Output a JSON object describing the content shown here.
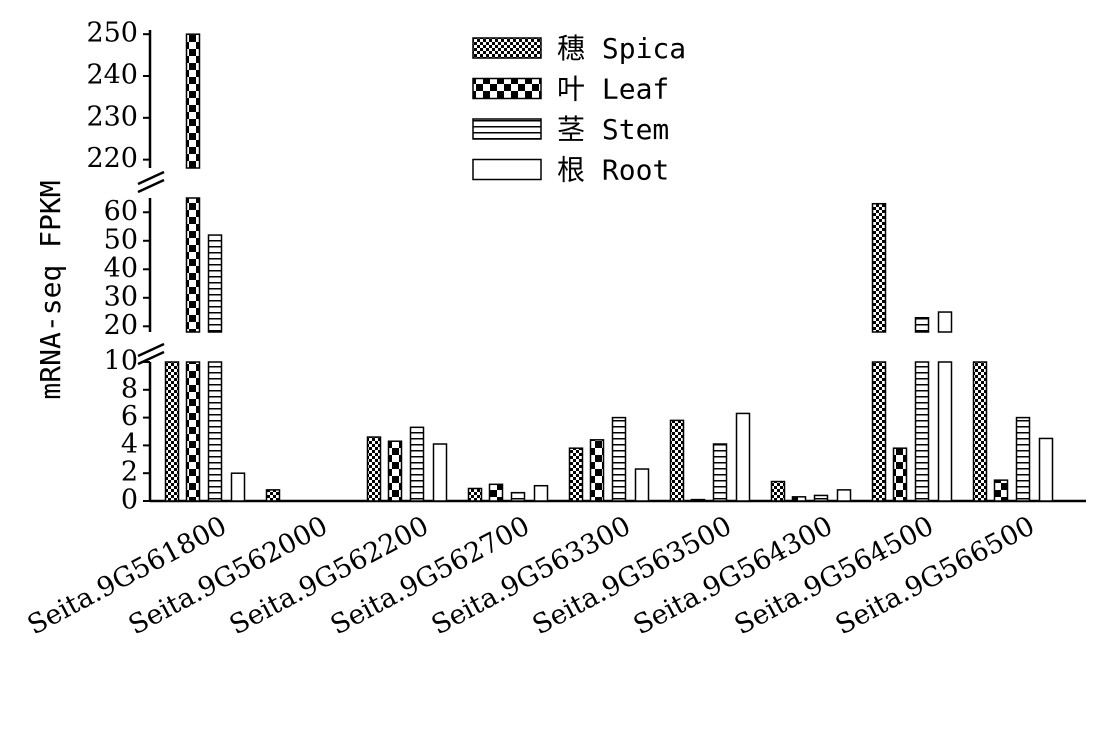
{
  "chart_data": {
    "type": "bar",
    "y_label": "mRNA-seq FPKM",
    "categories": [
      "Seita.9G561800",
      "Seita.9G562000",
      "Seita.9G562200",
      "Seita.9G562700",
      "Seita.9G563300",
      "Seita.9G563500",
      "Seita.9G564300",
      "Seita.9G564500",
      "Seita.9G566500"
    ],
    "series": [
      {
        "name": "穗 Spica",
        "pattern": "fine-check",
        "values": [
          15,
          0.8,
          4.6,
          0.9,
          3.8,
          5.8,
          1.4,
          63,
          15
        ]
      },
      {
        "name": "叶 Leaf",
        "pattern": "coarse-check",
        "values": [
          250,
          0,
          4.3,
          1.2,
          4.4,
          0.1,
          0.3,
          3.8,
          1.5
        ]
      },
      {
        "name": "茎 Stem",
        "pattern": "hlines",
        "values": [
          52,
          0,
          5.3,
          0.6,
          6.0,
          4.1,
          0.4,
          23,
          6.0
        ]
      },
      {
        "name": "根 Root",
        "pattern": "none",
        "values": [
          2,
          0,
          4.1,
          1.1,
          2.3,
          6.3,
          0.8,
          25,
          4.5
        ]
      }
    ],
    "y_segments": [
      {
        "ylim": [
          0,
          10
        ],
        "yticks": [
          0,
          2,
          4,
          6,
          8,
          10
        ]
      },
      {
        "ylim": [
          18,
          65
        ],
        "yticks": [
          20,
          30,
          40,
          50,
          60
        ]
      },
      {
        "ylim": [
          218,
          251
        ],
        "yticks": [
          220,
          230,
          240,
          250
        ]
      }
    ],
    "grid": false
  }
}
